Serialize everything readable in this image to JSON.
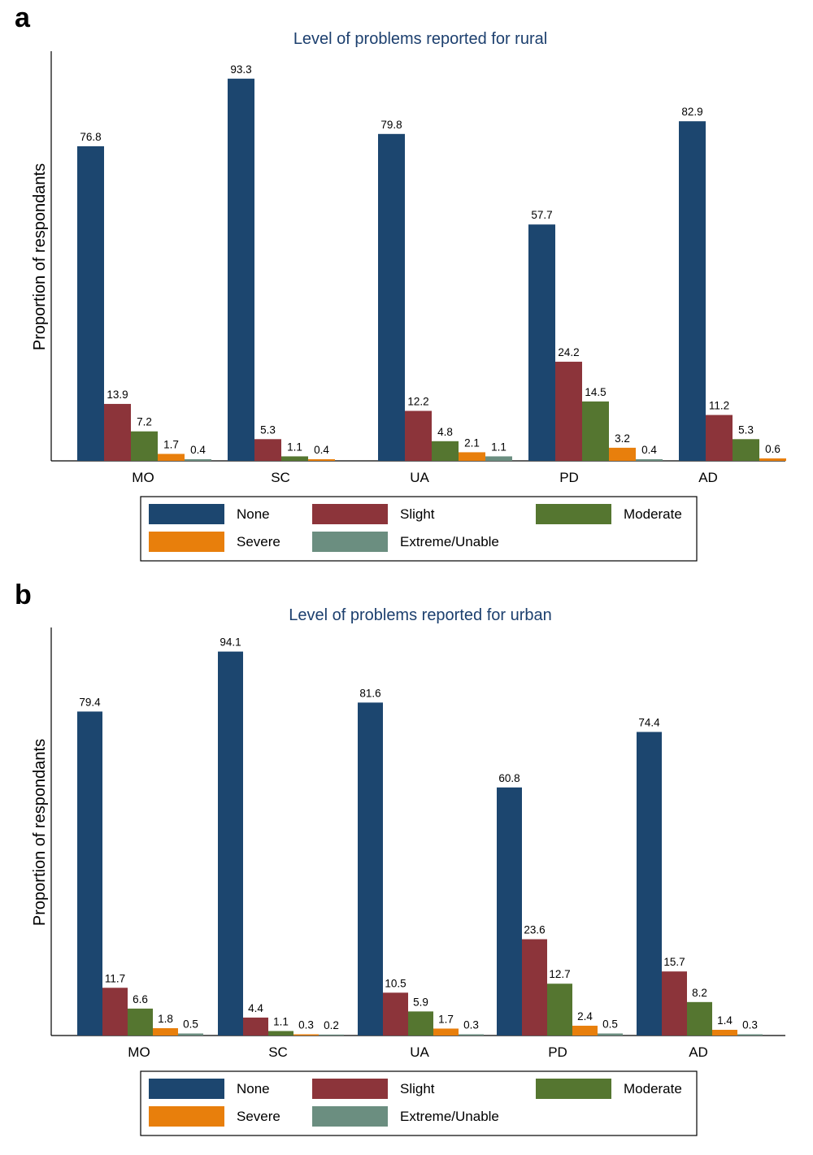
{
  "chart_data": [
    {
      "panel": "a",
      "type": "bar",
      "title": "Level of problems reported for rural",
      "ylabel": "Proportion of respondants",
      "xlabel": "",
      "ylim": [
        0,
        100
      ],
      "grid": false,
      "legend_position": "bottom",
      "categories": [
        "MO",
        "SC",
        "UA",
        "PD",
        "AD"
      ],
      "series": [
        {
          "name": "None",
          "color": "#1c466f",
          "values": [
            76.8,
            93.3,
            79.8,
            57.7,
            82.9
          ]
        },
        {
          "name": "Slight",
          "color": "#8c343a",
          "values": [
            13.9,
            5.3,
            12.2,
            24.2,
            11.2
          ]
        },
        {
          "name": "Moderate",
          "color": "#557630",
          "values": [
            7.2,
            1.1,
            4.8,
            14.5,
            5.3
          ]
        },
        {
          "name": "Severe",
          "color": "#e87f0c",
          "values": [
            1.7,
            0.4,
            2.1,
            3.2,
            0.6
          ]
        },
        {
          "name": "Extreme/Unable",
          "color": "#6b8e80",
          "values": [
            0.4,
            null,
            1.1,
            0.4,
            null
          ]
        }
      ]
    },
    {
      "panel": "b",
      "type": "bar",
      "title": "Level of problems reported for urban",
      "ylabel": "Proportion of respondants",
      "xlabel": "",
      "ylim": [
        0,
        100
      ],
      "grid": false,
      "legend_position": "bottom",
      "categories": [
        "MO",
        "SC",
        "UA",
        "PD",
        "AD"
      ],
      "series": [
        {
          "name": "None",
          "color": "#1c466f",
          "values": [
            79.4,
            94.1,
            81.6,
            60.8,
            74.4
          ]
        },
        {
          "name": "Slight",
          "color": "#8c343a",
          "values": [
            11.7,
            4.4,
            10.5,
            23.6,
            15.7
          ]
        },
        {
          "name": "Moderate",
          "color": "#557630",
          "values": [
            6.6,
            1.1,
            5.9,
            12.7,
            8.2
          ]
        },
        {
          "name": "Severe",
          "color": "#e87f0c",
          "values": [
            1.8,
            0.3,
            1.7,
            2.4,
            1.4
          ]
        },
        {
          "name": "Extreme/Unable",
          "color": "#6b8e80",
          "values": [
            0.5,
            0.2,
            0.3,
            0.5,
            0.3
          ]
        }
      ]
    }
  ]
}
